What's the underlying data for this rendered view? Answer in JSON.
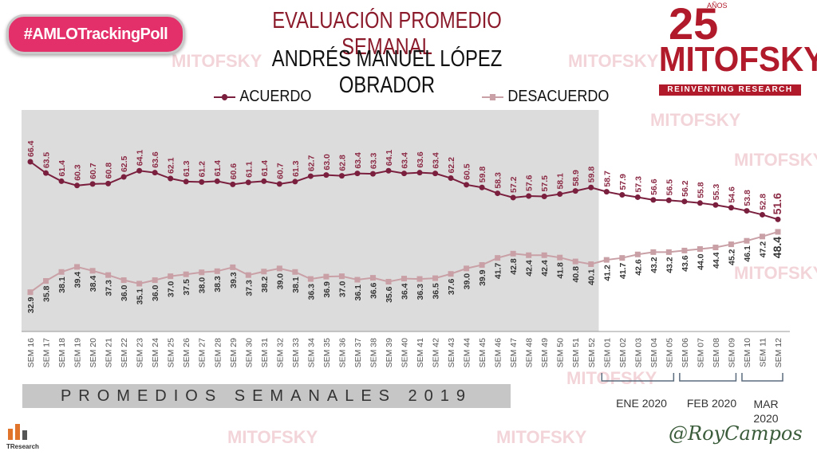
{
  "hashtag": "#AMLOTrackingPoll",
  "title_line1": "EVALUACIÓN PROMEDIO SEMANAL",
  "title_line2": "ANDRÉS MANUEL LÓPEZ OBRADOR",
  "logo": {
    "number": "25",
    "years": "AÑOS",
    "name": "MITOFSKY",
    "tagline": "REINVENTING RESEARCH"
  },
  "watermark": "MITOFSKY",
  "bottom_label": "PROMEDIOS SEMANALES 2019",
  "months": [
    "ENE 2020",
    "FEB 2020",
    "MAR 2020"
  ],
  "signature": "@RoyCampos",
  "tresearch": "TResearch",
  "colors": {
    "acuerdo": "#7a1f3d",
    "desacuerdo": "#c9a0a6",
    "label_acuerdo": "#8b2a45",
    "label_desacuerdo": "#333333",
    "shade": "#dcdcdc"
  },
  "chart_data": {
    "type": "line",
    "title": "EVALUACIÓN PROMEDIO SEMANAL",
    "subtitle": "ANDRÉS MANUEL LÓPEZ OBRADOR",
    "legend_position": "top",
    "categories": [
      "SEM 16",
      "SEM 17",
      "SEM 18",
      "SEM 19",
      "SEM 20",
      "SEM 21",
      "SEM 22",
      "SEM 23",
      "SEM 24",
      "SEM 25",
      "SEM 26",
      "SEM 27",
      "SEM 28",
      "SEM 29",
      "SEM 30",
      "SEM 31",
      "SEM 32",
      "SEM 33",
      "SEM 34",
      "SEM 35",
      "SEM 36",
      "SEM 37",
      "SEM 38",
      "SEM 39",
      "SEM 40",
      "SEM 41",
      "SEM 42",
      "SEM 43",
      "SEM 44",
      "SEM 45",
      "SEM 46",
      "SEM 47",
      "SEM 48",
      "SEM 49",
      "SEM 50",
      "SEM 51",
      "SEM 52",
      "SEM 01",
      "SEM 02",
      "SEM 03",
      "SEM 04",
      "SEM 05",
      "SEM 06",
      "SEM 07",
      "SEM 08",
      "SEM 09",
      "SEM 10",
      "SEM 11",
      "SEM 12"
    ],
    "series": [
      {
        "name": "ACUERDO",
        "values": [
          66.4,
          63.5,
          61.4,
          60.3,
          60.7,
          60.8,
          62.5,
          64.1,
          63.6,
          62.1,
          61.3,
          61.2,
          61.4,
          60.6,
          61.1,
          61.4,
          60.7,
          61.3,
          62.7,
          63.0,
          62.8,
          63.4,
          63.3,
          64.1,
          63.4,
          63.6,
          63.4,
          62.2,
          60.5,
          59.8,
          58.3,
          57.2,
          57.6,
          57.5,
          58.1,
          58.9,
          59.8,
          58.7,
          57.9,
          57.3,
          56.6,
          56.5,
          56.2,
          55.8,
          55.3,
          54.6,
          53.8,
          52.8,
          51.6
        ]
      },
      {
        "name": "DESACUERDO",
        "values": [
          32.9,
          35.8,
          38.1,
          39.4,
          38.4,
          37.3,
          36.0,
          35.1,
          36.0,
          37.0,
          37.5,
          38.0,
          38.3,
          39.3,
          37.3,
          38.2,
          39.0,
          38.1,
          36.3,
          36.9,
          37.0,
          36.1,
          36.6,
          35.6,
          36.4,
          36.3,
          36.5,
          37.6,
          39.0,
          39.9,
          41.7,
          42.8,
          42.4,
          42.4,
          41.8,
          40.8,
          40.1,
          41.2,
          41.7,
          42.6,
          43.2,
          43.2,
          43.6,
          44.0,
          44.4,
          45.2,
          46.1,
          47.2,
          48.4
        ]
      }
    ]
  }
}
